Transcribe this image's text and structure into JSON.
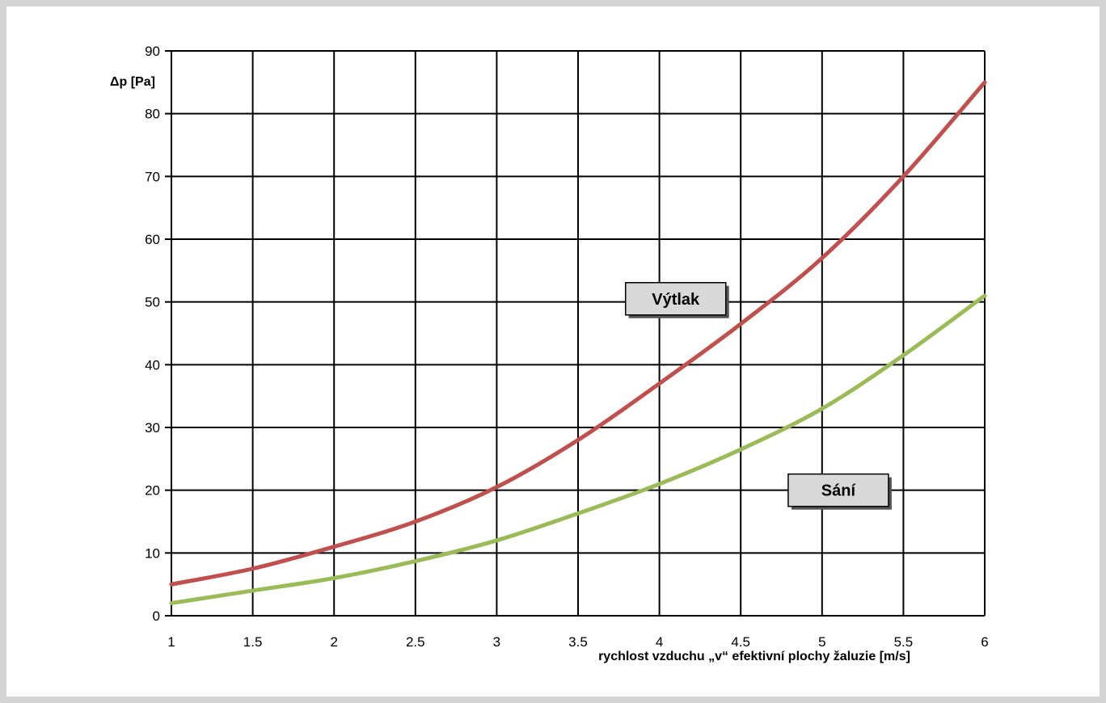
{
  "chart_data": {
    "type": "line",
    "title": "",
    "xlabel": "rychlost vzduchu „v“ efektivní plochy žaluzie [m/s]",
    "ylabel": "Δp [Pa]",
    "xlim": [
      1,
      6
    ],
    "ylim": [
      0,
      90
    ],
    "x_ticks": [
      "1",
      "1.5",
      "2",
      "2.5",
      "3",
      "3.5",
      "4",
      "4.5",
      "5",
      "5.5",
      "6"
    ],
    "y_ticks": [
      "0",
      "10",
      "20",
      "30",
      "40",
      "50",
      "60",
      "70",
      "80",
      "90"
    ],
    "grid": true,
    "x": [
      1,
      1.5,
      2,
      2.5,
      3,
      3.5,
      4,
      4.5,
      5,
      5.5,
      6
    ],
    "series": [
      {
        "name": "Výtlak",
        "color": "#c0504d",
        "values": [
          5,
          7.5,
          11,
          15,
          20.5,
          28,
          37,
          46.5,
          57,
          70,
          85
        ]
      },
      {
        "name": "Sání",
        "color": "#9bbb59",
        "values": [
          2,
          4,
          6,
          8.7,
          12,
          16.3,
          21,
          26.5,
          33,
          41.5,
          51
        ]
      }
    ],
    "annotations": [
      {
        "text": "Výtlak",
        "x": 4.1,
        "y": 50.5
      },
      {
        "text": "Sání",
        "x": 5.1,
        "y": 20.0
      }
    ]
  }
}
